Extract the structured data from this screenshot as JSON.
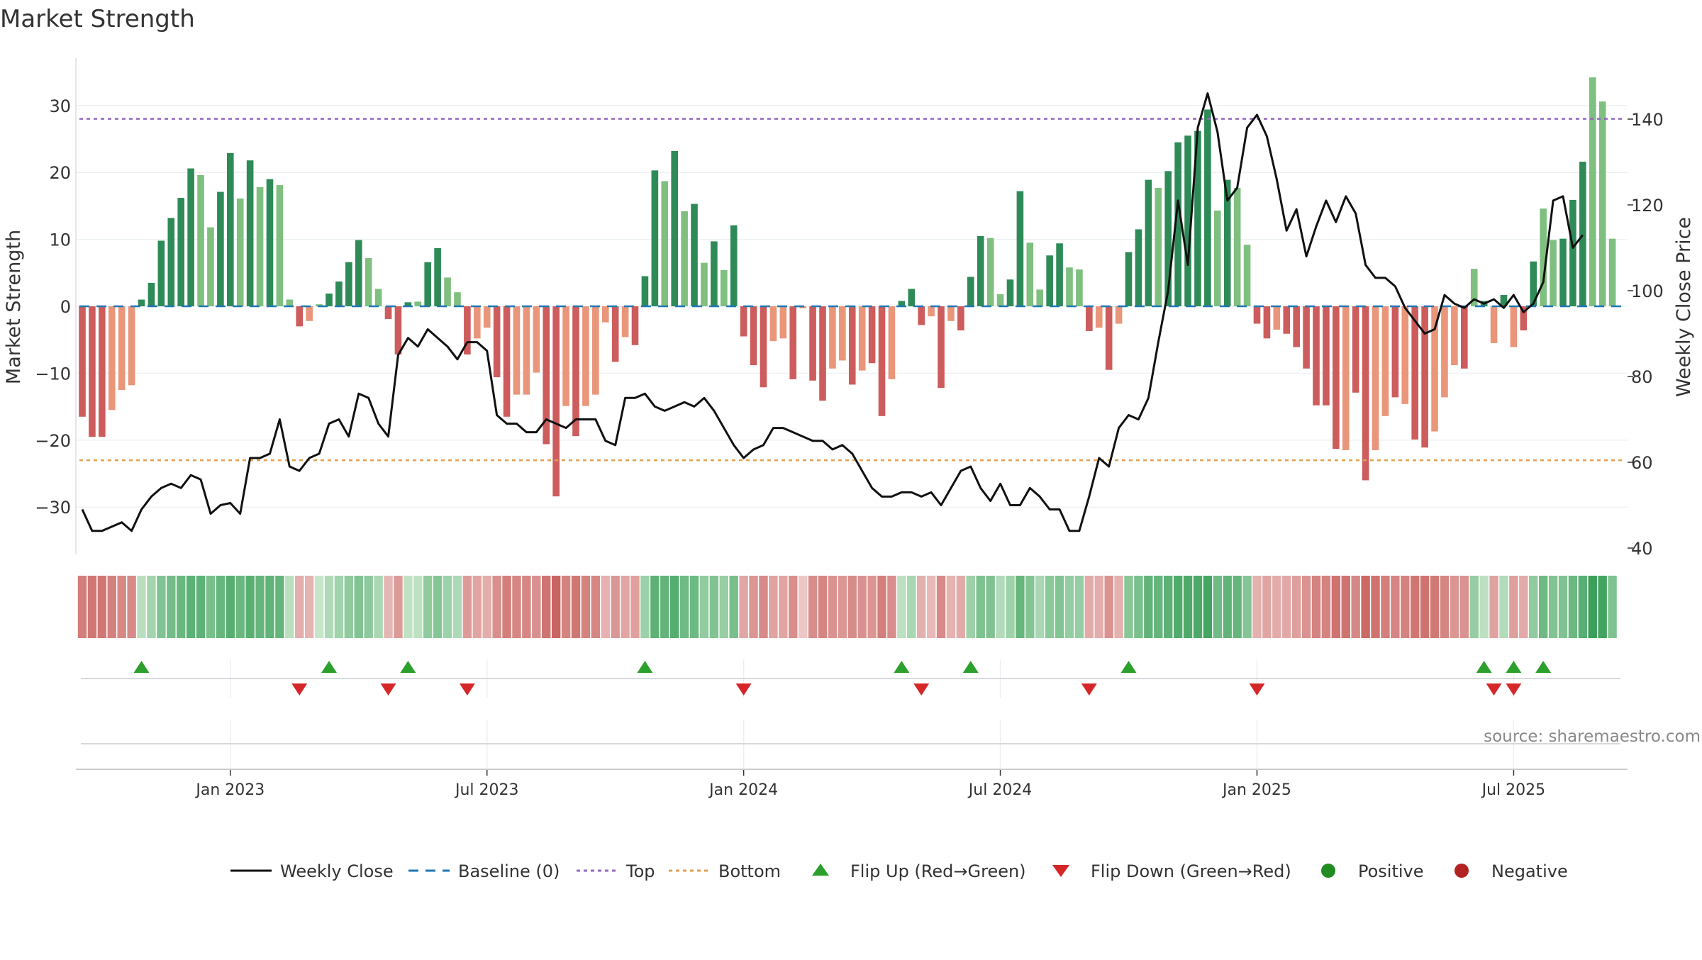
{
  "title": "Market Strength",
  "source": "source: sharemaestro.com",
  "colors": {
    "strong_green": "#2e8b57",
    "light_green": "#7fbf7f",
    "strong_red": "#cd5c5c",
    "light_red": "#e9967a",
    "close": "#111111",
    "baseline": "#1f77b4",
    "top": "#9467bd",
    "bottom": "#e0a050",
    "flip_up": "#2ca02c",
    "flip_down": "#d62728",
    "positive": "#228b22",
    "negative": "#b22222"
  },
  "chart_data": {
    "type": "bar",
    "title": "Market Strength",
    "ylabel": "Market Strength",
    "y2label": "Weekly Close Price",
    "ylim": [
      -37,
      37
    ],
    "y2lim": [
      38,
      157
    ],
    "yticks": [
      30,
      20,
      10,
      0,
      -10,
      -20,
      -30
    ],
    "ytick_labels": [
      "30",
      "20",
      "10",
      "0",
      "−10",
      "−20",
      "−30"
    ],
    "y2ticks": [
      140,
      120,
      100,
      80,
      60,
      40
    ],
    "xticks": [
      {
        "label": "Jan 2023",
        "index": 15
      },
      {
        "label": "Jul 2023",
        "index": 41
      },
      {
        "label": "Jan 2024",
        "index": 67
      },
      {
        "label": "Jul 2024",
        "index": 93
      },
      {
        "label": "Jan 2025",
        "index": 119
      },
      {
        "label": "Jul 2025",
        "index": 145
      }
    ],
    "top_line": 28,
    "bottom_line": -23,
    "market_strength": [
      -16.5,
      -19.5,
      -19.5,
      -15.5,
      -12.5,
      -11.8,
      1,
      3.5,
      9.8,
      13.2,
      16.2,
      20.6,
      19.6,
      11.8,
      17.1,
      22.9,
      16.1,
      21.8,
      17.8,
      19,
      18.1,
      1,
      -3,
      -2.2,
      0.3,
      1.9,
      3.7,
      6.6,
      9.9,
      7.2,
      2.6,
      -1.9,
      -7.2,
      0.6,
      0.7,
      6.6,
      8.7,
      4.3,
      2.1,
      -7.2,
      -4.8,
      -3.2,
      -10.6,
      -16.5,
      -13.2,
      -13.2,
      -9.9,
      -20.6,
      -28.4,
      -14.9,
      -19.4,
      -14.9,
      -13.2,
      -2.4,
      -8.3,
      -4.6,
      -5.8,
      4.5,
      20.3,
      18.7,
      23.2,
      14.2,
      15.3,
      6.5,
      9.7,
      5.4,
      12.1,
      -4.5,
      -8.8,
      -12.1,
      -5.2,
      -4.8,
      -10.9,
      -0.3,
      -11.1,
      -14.1,
      -9.3,
      -8.1,
      -11.7,
      -9.6,
      -8.5,
      -16.4,
      -10.9,
      0.8,
      2.6,
      -2.8,
      -1.5,
      -12.2,
      -2.2,
      -3.6,
      4.4,
      10.5,
      10.2,
      1.8,
      4,
      17.2,
      9.5,
      2.5,
      7.6,
      9.4,
      5.8,
      5.5,
      -3.7,
      -3.2,
      -9.5,
      -2.6,
      8.1,
      11.5,
      18.9,
      17.7,
      20.2,
      24.5,
      25.5,
      26.2,
      29.4,
      14.3,
      18.9,
      17.7,
      9.2,
      -2.6,
      -4.8,
      -3.5,
      -4.1,
      -6.1,
      -9.3,
      -14.8,
      -14.8,
      -21.3,
      -21.5,
      -12.9,
      -26,
      -21.5,
      -16.4,
      -13.6,
      -14.6,
      -19.9,
      -21.1,
      -18.7,
      -13.6,
      -8.8,
      -9.3,
      5.6,
      0.8,
      -5.5,
      1.7,
      -6.1,
      -3.6,
      6.7,
      14.6,
      9.9,
      10.1,
      15.9,
      21.6,
      34.2,
      30.6,
      10.1
    ],
    "strength_intensity": [
      "s",
      "s",
      "s",
      "l",
      "l",
      "l",
      "s",
      "s",
      "s",
      "s",
      "s",
      "s",
      "l",
      "l",
      "s",
      "s",
      "l",
      "s",
      "l",
      "s",
      "l",
      "l",
      "s",
      "l",
      "l",
      "s",
      "s",
      "s",
      "s",
      "l",
      "l",
      "s",
      "s",
      "s",
      "l",
      "s",
      "s",
      "l",
      "l",
      "s",
      "l",
      "l",
      "s",
      "s",
      "l",
      "l",
      "l",
      "s",
      "s",
      "l",
      "s",
      "l",
      "l",
      "l",
      "s",
      "l",
      "s",
      "s",
      "s",
      "l",
      "s",
      "l",
      "s",
      "l",
      "s",
      "l",
      "s",
      "s",
      "s",
      "s",
      "l",
      "l",
      "s",
      "l",
      "s",
      "s",
      "l",
      "l",
      "s",
      "l",
      "s",
      "s",
      "l",
      "s",
      "s",
      "s",
      "l",
      "s",
      "l",
      "s",
      "s",
      "s",
      "l",
      "l",
      "s",
      "s",
      "l",
      "l",
      "s",
      "s",
      "l",
      "l",
      "s",
      "l",
      "s",
      "l",
      "s",
      "s",
      "s",
      "l",
      "s",
      "s",
      "s",
      "s",
      "s",
      "l",
      "s",
      "l",
      "l",
      "s",
      "s",
      "l",
      "s",
      "s",
      "s",
      "s",
      "s",
      "s",
      "l",
      "s",
      "s",
      "l",
      "l",
      "s",
      "l",
      "s",
      "s",
      "l",
      "l",
      "l",
      "s",
      "l",
      "s",
      "l",
      "s",
      "l",
      "s",
      "s",
      "l",
      "l",
      "s",
      "s",
      "s",
      "l",
      "l"
    ],
    "weekly_close": [
      49,
      44,
      44,
      45,
      46,
      44,
      49,
      52,
      54,
      55,
      54,
      57,
      56,
      48,
      50,
      50.5,
      48,
      61,
      61,
      62,
      70,
      59,
      58,
      61,
      62,
      69,
      70,
      66,
      76,
      75,
      69,
      66,
      85,
      89,
      87,
      91,
      89,
      87,
      84,
      88,
      88,
      86,
      71,
      69,
      69,
      67,
      67,
      70,
      69,
      68,
      70,
      70,
      70,
      65,
      64,
      75,
      75,
      76,
      73,
      72,
      73,
      74,
      73,
      75,
      72,
      68,
      64,
      61,
      63,
      64,
      68,
      68,
      67,
      66,
      65,
      65,
      63,
      64,
      62,
      58,
      54,
      52,
      52,
      53,
      53,
      52,
      53,
      50,
      54,
      58,
      59,
      54,
      51,
      55,
      50,
      50,
      54,
      52,
      49,
      49,
      44,
      44,
      52,
      61,
      59,
      68,
      71,
      70,
      75,
      88,
      100,
      121,
      106,
      138,
      146,
      137,
      121,
      124,
      138,
      141,
      136,
      126,
      114,
      119,
      108,
      115,
      121,
      116,
      122,
      118,
      106,
      103,
      103,
      101,
      96,
      93,
      90,
      91,
      99,
      97,
      96,
      98,
      97,
      98,
      96,
      99,
      95,
      97,
      102,
      121,
      122,
      110,
      113
    ],
    "flips_up": [
      6,
      25,
      33,
      57,
      83,
      90,
      106,
      142,
      145,
      148
    ],
    "flips_down": [
      22,
      31,
      39,
      67,
      85,
      102,
      119,
      143,
      145
    ]
  },
  "legend": [
    {
      "label": "Weekly Close",
      "kind": "line-solid"
    },
    {
      "label": "Baseline (0)",
      "kind": "line-dash"
    },
    {
      "label": "Top",
      "kind": "line-dot-purple"
    },
    {
      "label": "Bottom",
      "kind": "line-dot-orange"
    },
    {
      "label": "Flip Up (Red→Green)",
      "kind": "tri-up"
    },
    {
      "label": "Flip Down (Green→Red)",
      "kind": "tri-down"
    },
    {
      "label": "Positive",
      "kind": "dot-green"
    },
    {
      "label": "Negative",
      "kind": "dot-red"
    }
  ]
}
